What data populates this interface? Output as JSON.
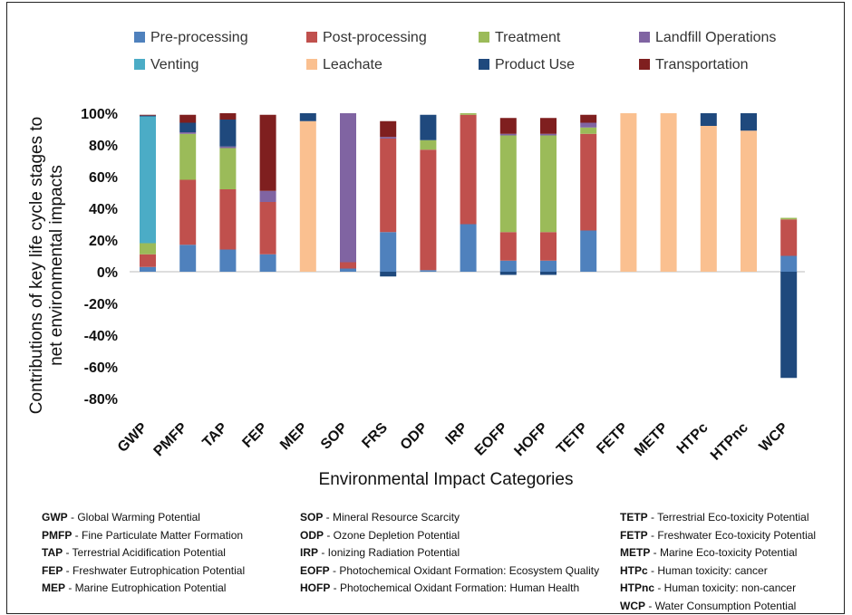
{
  "chart_data": {
    "type": "bar",
    "stacked": true,
    "xlabel": "Environmental Impact Categories",
    "ylabel": "Contributions of key life cycle stages to net environmental impacts",
    "ylim": [
      -0.8,
      1.0
    ],
    "yticks": [
      1.0,
      0.8,
      0.6,
      0.4,
      0.2,
      0.0,
      -0.2,
      -0.4,
      -0.6,
      -0.8
    ],
    "ytick_labels": [
      "100%",
      "80%",
      "60%",
      "40%",
      "20%",
      "0%",
      "-20%",
      "-40%",
      "-60%",
      "-80%"
    ],
    "legend_position": "top",
    "categories": [
      "GWP",
      "PMFP",
      "TAP",
      "FEP",
      "MEP",
      "SOP",
      "FRS",
      "ODP",
      "IRP",
      "EOFP",
      "HOFP",
      "TETP",
      "FETP",
      "METP",
      "HTPc",
      "HTPnc",
      "WCP"
    ],
    "series": [
      {
        "name": "Pre-processing",
        "color": "#4f81bd",
        "values": [
          0.03,
          0.17,
          0.14,
          0.11,
          0.0,
          0.02,
          0.25,
          0.01,
          0.3,
          0.07,
          0.07,
          0.26,
          0.0,
          0.0,
          0.0,
          0.0,
          0.1
        ]
      },
      {
        "name": "Post-processing",
        "color": "#c0504d",
        "values": [
          0.08,
          0.41,
          0.38,
          0.33,
          0.0,
          0.04,
          0.59,
          0.76,
          0.69,
          0.18,
          0.18,
          0.61,
          0.0,
          0.0,
          0.0,
          0.0,
          0.23
        ]
      },
      {
        "name": "Treatment",
        "color": "#9bbb59",
        "values": [
          0.07,
          0.29,
          0.26,
          0.0,
          0.0,
          0.0,
          0.0,
          0.06,
          0.01,
          0.61,
          0.61,
          0.04,
          0.0,
          0.0,
          0.0,
          0.0,
          0.01
        ]
      },
      {
        "name": "Landfill Operations",
        "color": "#8064a2",
        "values": [
          0.0,
          0.01,
          0.01,
          0.07,
          0.0,
          0.94,
          0.01,
          0.0,
          0.0,
          0.01,
          0.01,
          0.03,
          0.0,
          0.0,
          0.0,
          0.0,
          0.0
        ]
      },
      {
        "name": "Venting",
        "color": "#4bacc6",
        "values": [
          0.8,
          0.0,
          0.0,
          0.0,
          0.0,
          0.0,
          0.0,
          0.0,
          0.0,
          0.0,
          0.0,
          0.0,
          0.0,
          0.0,
          0.0,
          0.0,
          0.0
        ]
      },
      {
        "name": "Leachate",
        "color": "#fac090",
        "values": [
          0.0,
          0.0,
          0.0,
          0.0,
          0.95,
          0.0,
          0.0,
          0.0,
          0.0,
          0.0,
          0.0,
          0.0,
          1.0,
          1.0,
          0.92,
          0.89,
          0.0
        ]
      },
      {
        "name": "Product Use",
        "color": "#1f497d",
        "values": [
          0.005,
          0.06,
          0.17,
          0.0,
          0.05,
          0.0,
          -0.03,
          0.16,
          0.0,
          -0.02,
          -0.02,
          0.0,
          0.0,
          0.0,
          0.08,
          0.11,
          -0.67
        ]
      },
      {
        "name": "Transportation",
        "color": "#7f1f1f",
        "values": [
          0.005,
          0.05,
          0.04,
          0.48,
          0.0,
          0.0,
          0.1,
          0.0,
          0.0,
          0.1,
          0.1,
          0.05,
          0.0,
          0.0,
          0.0,
          0.0,
          0.0
        ]
      }
    ]
  },
  "abbreviations": [
    [
      {
        "abbr": "GWP",
        "full": "Global Warming Potential"
      },
      {
        "abbr": "PMFP",
        "full": "Fine Particulate Matter Formation"
      },
      {
        "abbr": "TAP",
        "full": "Terrestrial Acidification Potential"
      },
      {
        "abbr": "FEP",
        "full": "Freshwater Eutrophication Potential"
      },
      {
        "abbr": "MEP",
        "full": "Marine Eutrophication Potential"
      }
    ],
    [
      {
        "abbr": "SOP",
        "full": "Mineral Resource Scarcity"
      },
      {
        "abbr": "ODP",
        "full": "Ozone Depletion Potential"
      },
      {
        "abbr": "IRP",
        "full": "Ionizing Radiation Potential"
      },
      {
        "abbr": "EOFP",
        "full": "Photochemical Oxidant Formation: Ecosystem Quality"
      },
      {
        "abbr": "HOFP",
        "full": "Photochemical Oxidant Formation: Human Health"
      }
    ],
    [
      {
        "abbr": "TETP",
        "full": "Terrestrial Eco-toxicity Potential"
      },
      {
        "abbr": "FETP",
        "full": "Freshwater Eco-toxicity Potential"
      },
      {
        "abbr": "METP",
        "full": "Marine Eco-toxicity Potential"
      },
      {
        "abbr": "HTPc",
        "full": "Human toxicity: cancer"
      },
      {
        "abbr": "HTPnc",
        "full": "Human toxicity: non-cancer"
      },
      {
        "abbr": "WCP",
        "full": "Water Consumption Potential"
      }
    ]
  ]
}
